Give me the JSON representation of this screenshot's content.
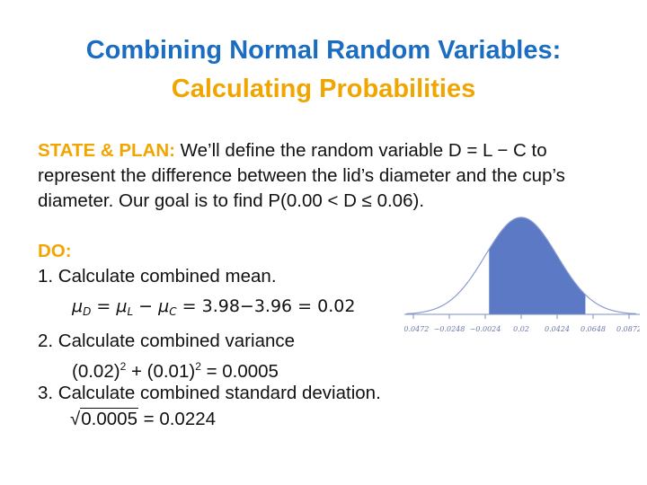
{
  "title": {
    "line1": "Combining Normal Random Variables:",
    "line2": "Calculating Probabilities",
    "line1_color": "#1B6DC2",
    "line2_color": "#F0A500"
  },
  "state_plan": {
    "label": "STATE & PLAN:",
    "line1": " We’ll define the random variable D = L − C to",
    "line2": "represent the difference between the lid’s diameter and the cup’s",
    "line3": "diameter. Our goal is to find P(0.00 < D ≤ 0.06)."
  },
  "do": {
    "label": "DO:",
    "step1": "1. Calculate combined mean.",
    "mean": {
      "mu": "μ",
      "sub_d": "D",
      "sub_l": "L",
      "sub_c": "C",
      "eq": " = ",
      "minus": " − ",
      "rest": " = 3.98−3.96 = 0.02"
    },
    "step2": "2. Calculate combined variance",
    "variance": {
      "term1": "(0.02)",
      "plus": " + ",
      "term2": "(0.01)",
      "exp": "2",
      "result": " = 0.0005"
    },
    "step3": "3. Calculate combined standard deviation.",
    "sd": {
      "radical_sign": "√",
      "radicand": "0.0005",
      "result": " = 0.0224"
    }
  },
  "chart_data": {
    "type": "area",
    "distribution": "normal",
    "mean": 0.02,
    "sd": 0.0224,
    "shaded_interval": [
      0.0,
      0.06
    ],
    "tick_labels": [
      "−0.0472",
      "−0.0248",
      "−0.0024",
      "0.02",
      "0.0424",
      "0.0648",
      "0.0872"
    ],
    "fill_color": "#5B79C4",
    "curve_color": "#8A9BD0"
  }
}
